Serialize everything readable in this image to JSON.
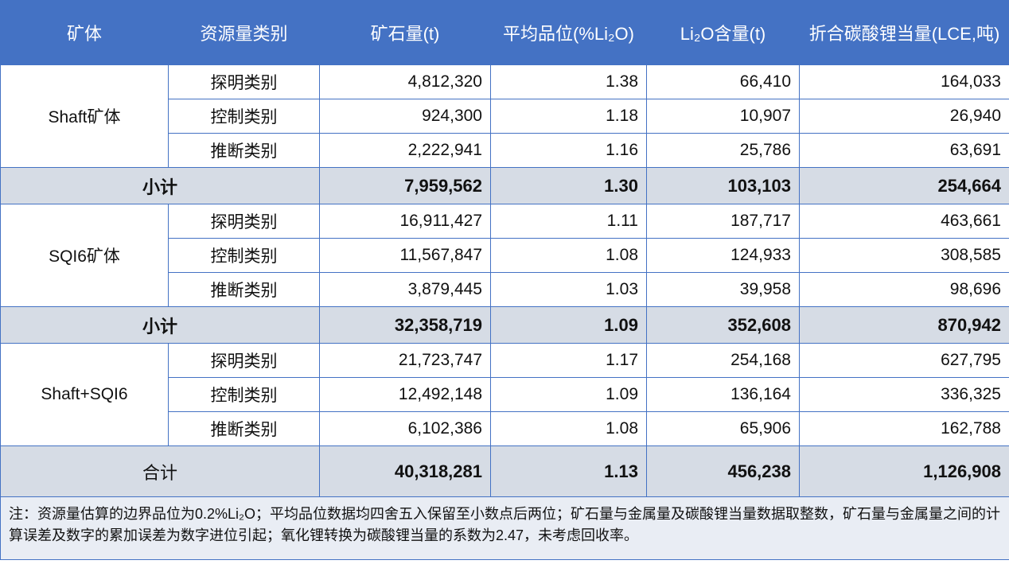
{
  "headers": [
    "矿体",
    "资源量类别",
    "矿石量(t)",
    "平均品位(%Li₂O)",
    "Li₂O含量(t)",
    "折合碳酸锂当量(LCE,吨)"
  ],
  "groups": [
    {
      "name": "Shaft矿体",
      "rows": [
        [
          "探明类别",
          "4,812,320",
          "1.38",
          "66,410",
          "164,033"
        ],
        [
          "控制类别",
          "924,300",
          "1.18",
          "10,907",
          "26,940"
        ],
        [
          "推断类别",
          "2,222,941",
          "1.16",
          "25,786",
          "63,691"
        ]
      ],
      "subtotal": [
        "小计",
        "7,959,562",
        "1.30",
        "103,103",
        "254,664"
      ]
    },
    {
      "name": "SQI6矿体",
      "rows": [
        [
          "探明类别",
          "16,911,427",
          "1.11",
          "187,717",
          "463,661"
        ],
        [
          "控制类别",
          "11,567,847",
          "1.08",
          "124,933",
          "308,585"
        ],
        [
          "推断类别",
          "3,879,445",
          "1.03",
          "39,958",
          "98,696"
        ]
      ],
      "subtotal": [
        "小计",
        "32,358,719",
        "1.09",
        "352,608",
        "870,942"
      ]
    },
    {
      "name": "Shaft+SQI6",
      "rows": [
        [
          "探明类别",
          "21,723,747",
          "1.17",
          "254,168",
          "627,795"
        ],
        [
          "控制类别",
          "12,492,148",
          "1.09",
          "136,164",
          "336,325"
        ],
        [
          "推断类别",
          "6,102,386",
          "1.08",
          "65,906",
          "162,788"
        ]
      ]
    }
  ],
  "total": [
    "合计",
    "40,318,281",
    "1.13",
    "456,238",
    "1,126,908"
  ],
  "note": "注：资源量估算的边界品位为0.2%Li₂O；平均品位数据均四舍五入保留至小数点后两位；矿石量与金属量及碳酸锂当量数据取整数，矿石量与金属量之间的计算误差及数字的累加误差为数字进位引起；氧化锂转换为碳酸锂当量的系数为2.47，未考虑回收率。",
  "colors": {
    "header": "#4472c4",
    "subtotal": "#d6dce5",
    "note": "#e9edf4"
  }
}
